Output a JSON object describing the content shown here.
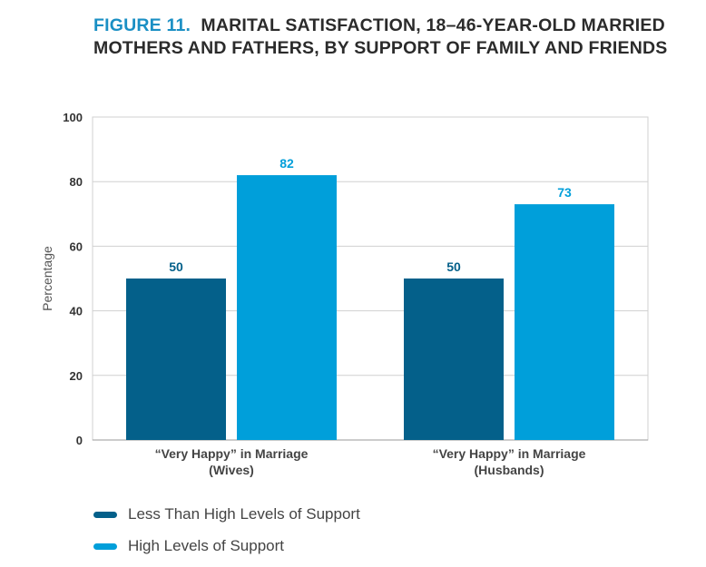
{
  "title": {
    "figure_label": "FIGURE 11.",
    "text": "MARITAL SATISFACTION, 18–46-YEAR-OLD MARRIED MOTHERS AND FATHERS, BY SUPPORT OF FAMILY AND FRIENDS"
  },
  "colors": {
    "series_low": "#04608a",
    "series_high": "#009fda",
    "title_accent": "#1a8fc4"
  },
  "chart_data": {
    "type": "bar",
    "categories": [
      {
        "line1": "“Very Happy” in Marriage",
        "line2": "(Wives)"
      },
      {
        "line1": "“Very Happy” in Marriage",
        "line2": "(Husbands)"
      }
    ],
    "series": [
      {
        "name": "Less Than High Levels of Support",
        "values": [
          50,
          50
        ]
      },
      {
        "name": "High Levels of Support",
        "values": [
          82,
          73
        ]
      }
    ],
    "ylabel": "Percentage",
    "ylim": [
      0,
      100
    ],
    "yticks": [
      0,
      20,
      40,
      60,
      80,
      100
    ],
    "grid": true,
    "legend_position": "bottom-left"
  }
}
